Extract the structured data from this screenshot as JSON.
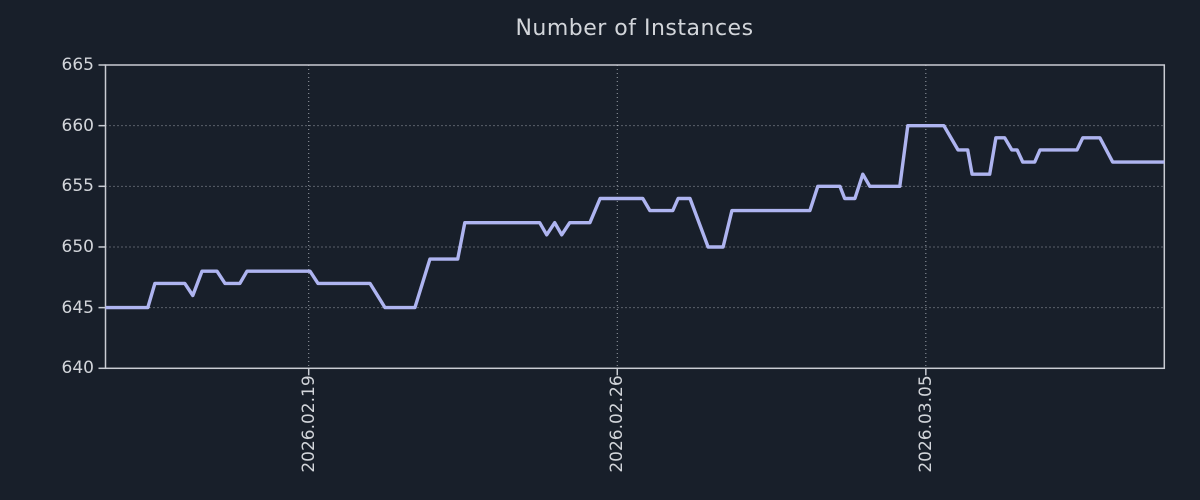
{
  "figure": {
    "title": "Number of Instances"
  },
  "colors": {
    "background": "#181f2a",
    "line": "#aeb4f0",
    "frame": "#c9ccd3",
    "grid": "#b2b7bf",
    "text": "#d2d5da"
  },
  "chart_data": {
    "type": "line",
    "title": "Number of Instances",
    "xlabel": "",
    "ylabel": "",
    "x_unit": "days_from_series_start",
    "x_range": [
      0,
      24.02
    ],
    "y_range": [
      640,
      665
    ],
    "y_ticks": [
      640,
      645,
      650,
      655,
      660,
      665
    ],
    "x_ticks": [
      {
        "offset_days": 4.61,
        "label": "2026.02.19"
      },
      {
        "offset_days": 11.61,
        "label": "2026.02.26"
      },
      {
        "offset_days": 18.61,
        "label": "2026.03.05"
      }
    ],
    "grid": {
      "style": "dotted",
      "horizontal_at": [
        645,
        650,
        655,
        660
      ],
      "vertical_at_xticks": true
    },
    "legend": null,
    "series": [
      {
        "name": "Number of Instances",
        "points": [
          [
            0.0,
            645
          ],
          [
            0.96,
            645
          ],
          [
            1.12,
            647
          ],
          [
            1.8,
            647
          ],
          [
            1.98,
            646
          ],
          [
            2.19,
            648
          ],
          [
            2.53,
            648
          ],
          [
            2.71,
            647
          ],
          [
            3.05,
            647
          ],
          [
            3.21,
            648
          ],
          [
            4.64,
            648
          ],
          [
            4.82,
            647
          ],
          [
            6.0,
            647
          ],
          [
            6.34,
            645
          ],
          [
            7.02,
            645
          ],
          [
            7.36,
            649
          ],
          [
            7.99,
            649
          ],
          [
            8.15,
            652
          ],
          [
            9.85,
            652
          ],
          [
            10.01,
            651
          ],
          [
            10.19,
            652
          ],
          [
            10.35,
            651
          ],
          [
            10.53,
            652
          ],
          [
            10.99,
            652
          ],
          [
            11.22,
            654
          ],
          [
            12.19,
            654
          ],
          [
            12.35,
            653
          ],
          [
            12.87,
            653
          ],
          [
            12.99,
            654
          ],
          [
            13.26,
            654
          ],
          [
            13.67,
            650
          ],
          [
            14.01,
            650
          ],
          [
            14.21,
            653
          ],
          [
            15.98,
            653
          ],
          [
            16.16,
            655
          ],
          [
            16.66,
            655
          ],
          [
            16.77,
            654
          ],
          [
            17.0,
            654
          ],
          [
            17.18,
            656
          ],
          [
            17.34,
            655
          ],
          [
            18.02,
            655
          ],
          [
            18.2,
            660
          ],
          [
            19.02,
            660
          ],
          [
            19.34,
            658
          ],
          [
            19.56,
            658
          ],
          [
            19.66,
            656
          ],
          [
            20.06,
            656
          ],
          [
            20.2,
            659
          ],
          [
            20.4,
            659
          ],
          [
            20.56,
            658
          ],
          [
            20.68,
            658
          ],
          [
            20.81,
            657
          ],
          [
            21.08,
            657
          ],
          [
            21.2,
            658
          ],
          [
            22.04,
            658
          ],
          [
            22.17,
            659
          ],
          [
            22.56,
            659
          ],
          [
            22.85,
            657
          ],
          [
            24.02,
            657
          ]
        ]
      }
    ]
  }
}
